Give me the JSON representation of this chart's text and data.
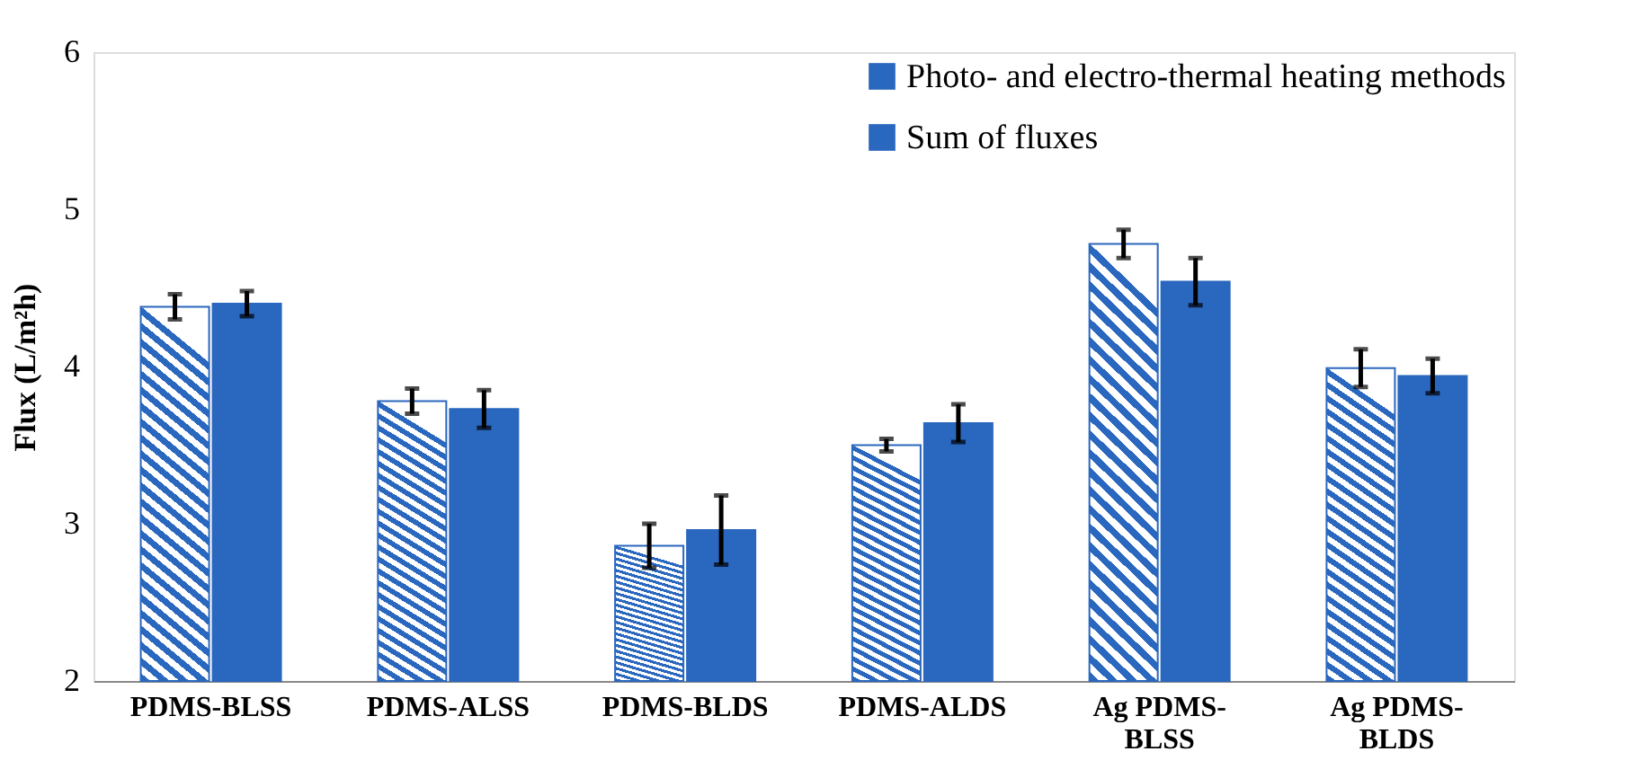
{
  "chart_data": {
    "type": "bar",
    "ylabel": "Flux (L/m²h)",
    "categories": [
      "PDMS-BLSS",
      "PDMS-ALSS",
      "PDMS-BLDS",
      "PDMS-ALDS",
      "Ag PDMS-BLSS",
      "Ag PDMS-BLDS"
    ],
    "series": [
      {
        "name": "Photo- and electro-thermal heating methods",
        "color": "#2a67be",
        "values": [
          4.38,
          3.78,
          2.86,
          3.5,
          4.78,
          3.99
        ],
        "errors": [
          0.08,
          0.08,
          0.14,
          0.04,
          0.09,
          0.12
        ]
      },
      {
        "name": "Sum of fluxes",
        "color": "#2a67be",
        "values": [
          4.4,
          3.73,
          2.96,
          3.64,
          4.54,
          3.94
        ],
        "errors": [
          0.08,
          0.12,
          0.22,
          0.12,
          0.15,
          0.11
        ]
      }
    ],
    "ylim": [
      2,
      6
    ],
    "yticks": [
      2,
      3,
      4,
      5,
      6
    ],
    "grid": false,
    "legend": "top right"
  }
}
